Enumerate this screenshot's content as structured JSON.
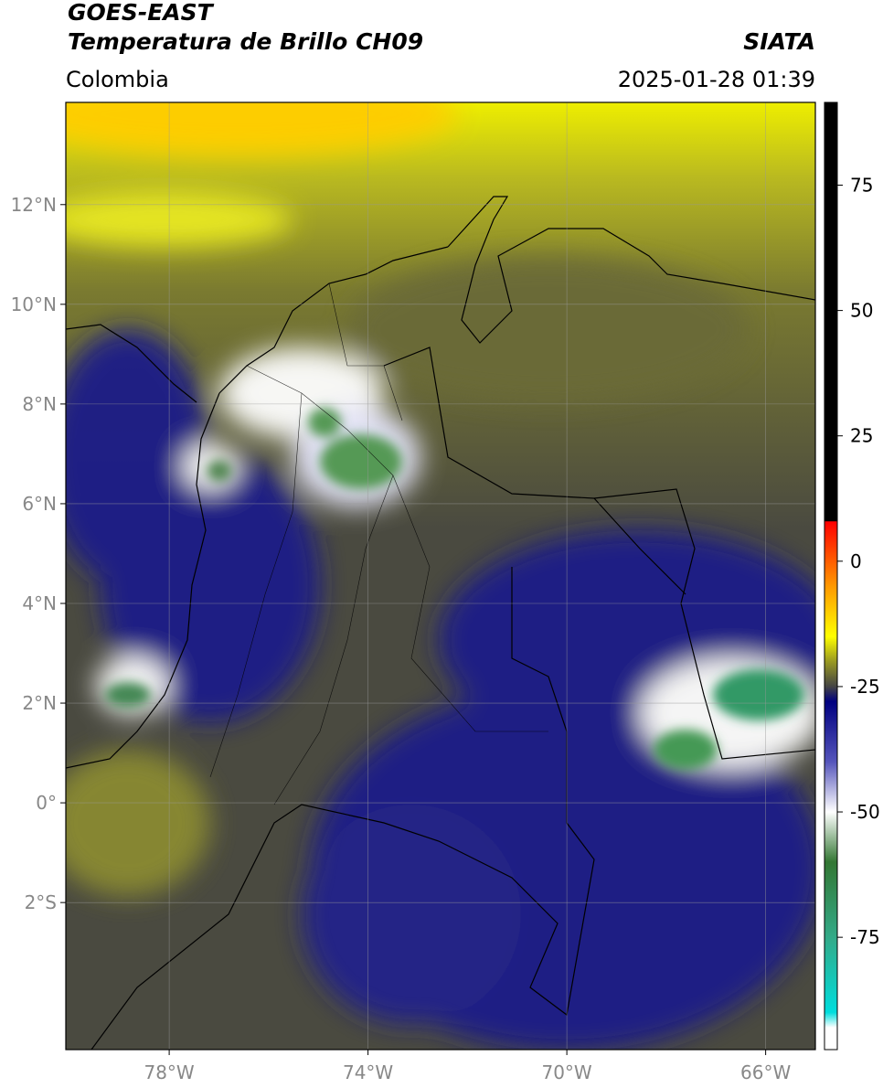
{
  "chart_data": {
    "type": "map",
    "title": "GOES-EAST",
    "subtitle": "Temperatura de Brillo CH09",
    "source": "SIATA",
    "region": "Colombia",
    "datetime": "2025-01-28 01:39",
    "xlim": [
      -80.08,
      -65.0
    ],
    "ylim": [
      -4.95,
      14.05
    ],
    "xticks": [
      {
        "value": -78,
        "label": "78°W"
      },
      {
        "value": -74,
        "label": "74°W"
      },
      {
        "value": -70,
        "label": "70°W"
      },
      {
        "value": -66,
        "label": "66°W"
      }
    ],
    "yticks": [
      {
        "value": 12,
        "label": "12°N"
      },
      {
        "value": 10,
        "label": "10°N"
      },
      {
        "value": 8,
        "label": "8°N"
      },
      {
        "value": 6,
        "label": "6°N"
      },
      {
        "value": 4,
        "label": "4°N"
      },
      {
        "value": 2,
        "label": "2°N"
      },
      {
        "value": 0,
        "label": "0°"
      },
      {
        "value": -2,
        "label": "2°S"
      }
    ],
    "grid": true,
    "clim": [
      -97.4,
      91.5
    ],
    "cticks": [
      75,
      50,
      25,
      0,
      -25,
      -50,
      -75
    ],
    "colormap": [
      {
        "value": 91.5,
        "color": "#000000"
      },
      {
        "value": 8,
        "color": "#000000"
      },
      {
        "value": 7.9,
        "color": "#ff0000"
      },
      {
        "value": -5,
        "color": "#ff9900"
      },
      {
        "value": -15,
        "color": "#ffff00"
      },
      {
        "value": -20,
        "color": "#999922"
      },
      {
        "value": -25,
        "color": "#444444"
      },
      {
        "value": -28,
        "color": "#000080"
      },
      {
        "value": -40,
        "color": "#5555bb"
      },
      {
        "value": -50,
        "color": "#ffffff"
      },
      {
        "value": -60,
        "color": "#337733"
      },
      {
        "value": -75,
        "color": "#33aa88"
      },
      {
        "value": -90,
        "color": "#00dddd"
      },
      {
        "value": -93,
        "color": "#ffffff"
      },
      {
        "value": -97.4,
        "color": "#ffffff"
      }
    ]
  }
}
